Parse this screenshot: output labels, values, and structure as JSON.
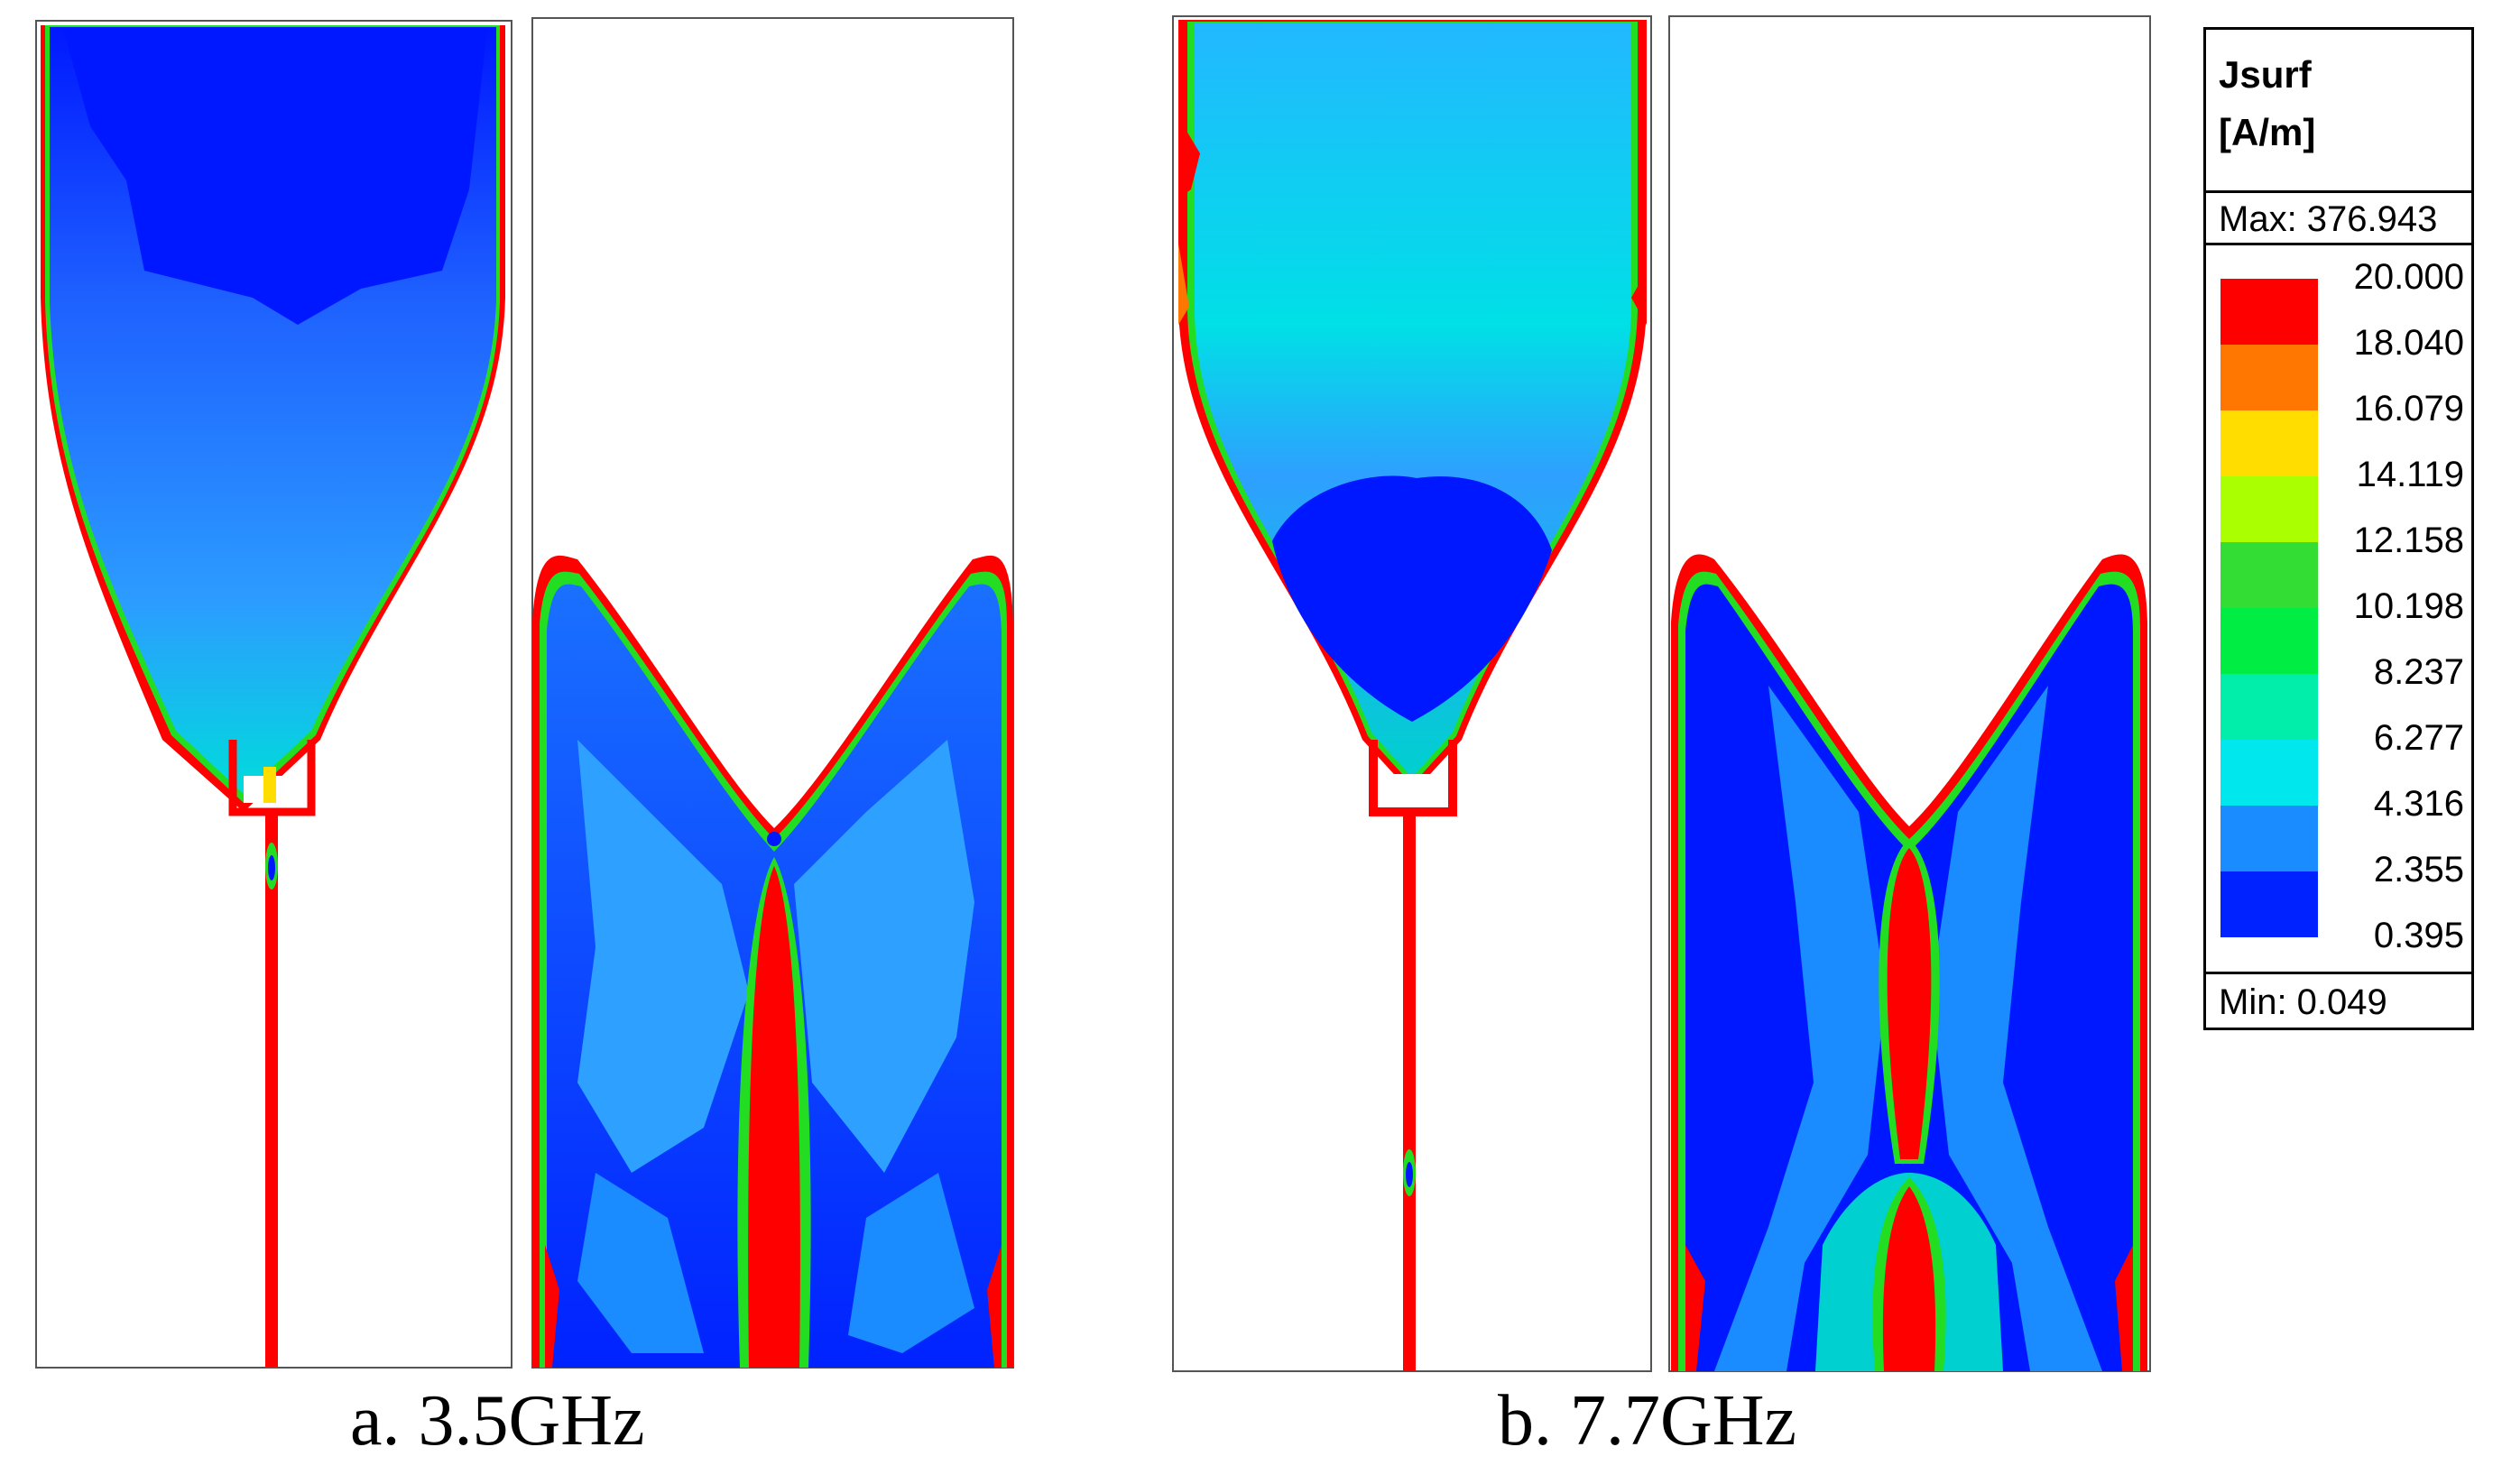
{
  "captions": {
    "a": "a. 3.5GHz",
    "b": "b. 7.7GHz"
  },
  "legend": {
    "title_line1": "Jsurf",
    "title_line2": "[A/m]",
    "max_label": "Max: 376.943",
    "min_label": "Min:  0.049",
    "ticks": [
      "20.000",
      "18.040",
      "16.079",
      "14.119",
      "12.158",
      "10.198",
      "8.237",
      "6.277",
      "4.316",
      "2.355",
      "0.395"
    ],
    "colors": [
      "#ff0000",
      "#ff7700",
      "#ffdd00",
      "#aaff00",
      "#33dd33",
      "#00ee44",
      "#00eeaa",
      "#00e8ee",
      "#1a8cff",
      "#0022ff"
    ]
  },
  "colors": {
    "red": "#ff0000",
    "orange": "#ff7700",
    "yellow": "#ffdd00",
    "green": "#22dd22",
    "cyan": "#00e0e8",
    "lightblue": "#33aaff",
    "blue": "#0018ff"
  }
}
